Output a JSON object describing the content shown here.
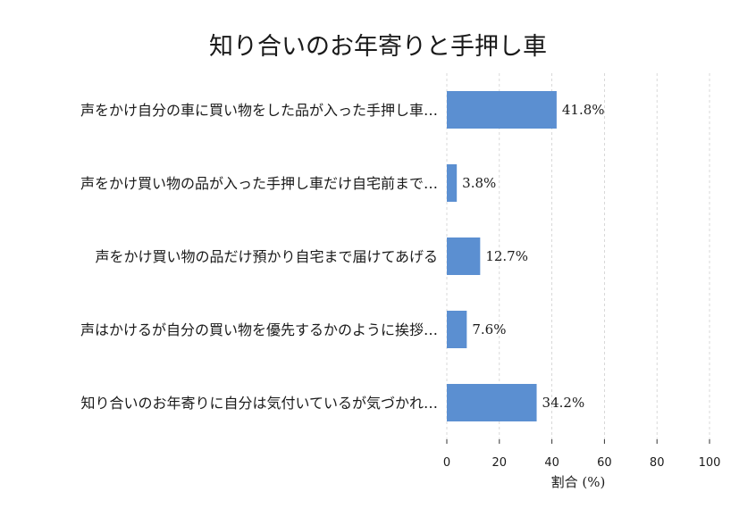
{
  "chart_data": {
    "type": "bar",
    "orientation": "horizontal",
    "title": "知り合いのお年寄りと手押し車",
    "xlabel": "割合 (%)",
    "ylabel": "",
    "xlim": [
      0,
      100
    ],
    "xticks": [
      0,
      20,
      40,
      60,
      80,
      100
    ],
    "grid": true,
    "categories": [
      "声をかけ自分の車に買い物をした品が入った手押し車…",
      "声をかけ買い物の品が入った手押し車だけ自宅前まで…",
      "声をかけ買い物の品だけ預かり自宅まで届けてあげる",
      "声はかけるが自分の買い物を優先するかのように挨拶…",
      "知り合いのお年寄りに自分は気付いているが気づかれ…"
    ],
    "values": [
      41.8,
      3.8,
      12.7,
      7.6,
      34.2
    ],
    "value_labels": [
      "41.8%",
      "3.8%",
      "12.7%",
      "7.6%",
      "34.2%"
    ],
    "bar_color": "#5b8fd1"
  }
}
